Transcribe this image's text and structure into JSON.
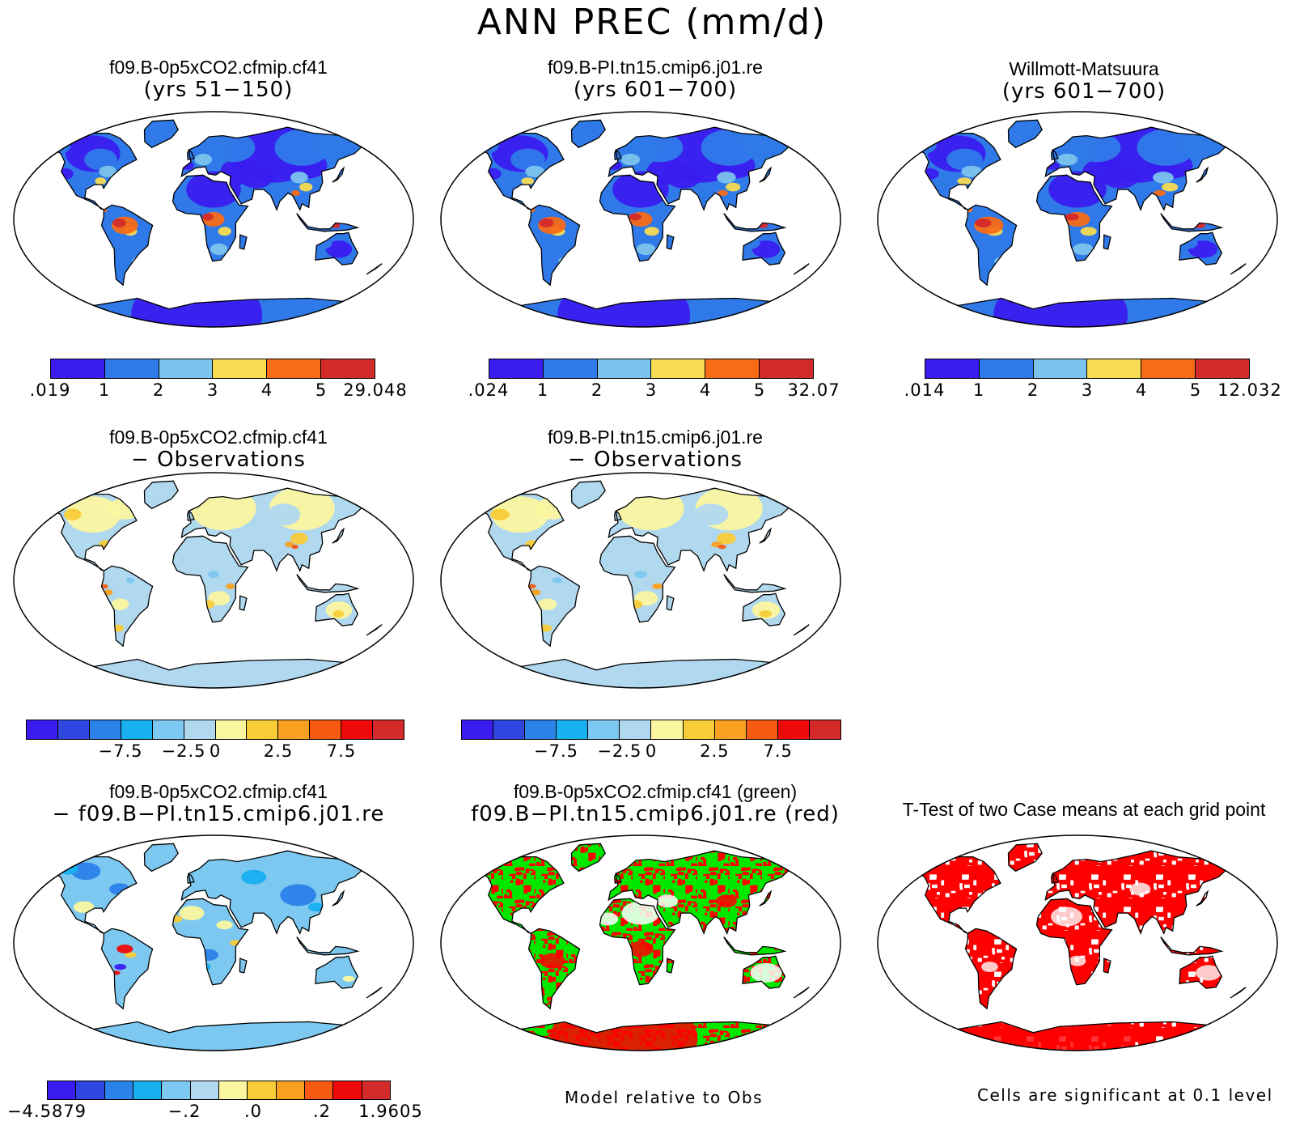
{
  "title": "ANN PREC (mm/d)",
  "palettes": {
    "abs": [
      "#3a1cf0",
      "#2f7ae8",
      "#7cc3ee",
      "#f8dc52",
      "#f86c18",
      "#d42a2a"
    ],
    "diff": [
      "#3a1cf0",
      "#3046e0",
      "#2b82e8",
      "#18b0f0",
      "#7cc8f0",
      "#b0d8ee",
      "#fbf7a0",
      "#f8cc38",
      "#f8a020",
      "#f85a12",
      "#ee0a0a",
      "#d42a2a"
    ],
    "rel": [
      "#3a1cf0",
      "#3046e0",
      "#2b82e8",
      "#18b0f0",
      "#7cc8f0",
      "#b0d8ee",
      "#fbf7a0",
      "#f8cc38",
      "#f8a020",
      "#f85a12",
      "#ee0a0a",
      "#d42a2a"
    ],
    "green": "#00e800",
    "red": "#ff0000",
    "ocean": "#ffffff",
    "coast": "#000000"
  },
  "panels": [
    {
      "id": "p1",
      "title1": "f09.B-0p5xCO2.cfmip.cf41",
      "title2": "(yrs 51−150)",
      "fill": "abs",
      "colorbar": ".019 | 1 | 2 | 3 | 4 | 5 | 29.048"
    },
    {
      "id": "p2",
      "title1": "f09.B-PI.tn15.cmip6.j01.re",
      "title2": "(yrs 601−700)",
      "fill": "abs",
      "colorbar": ".024 | 1 | 2 | 3 | 4 | 5 | 32.07"
    },
    {
      "id": "p3",
      "title1": "Willmott-Matsuura",
      "title2": "(yrs 601−700)",
      "fill": "abs",
      "colorbar": ".014 | 1 | 2 | 3 | 4 | 5 | 12.032"
    },
    {
      "id": "p4",
      "title1": "f09.B-0p5xCO2.cfmip.cf41",
      "title2": "− Observations",
      "fill": "diff",
      "colorbar": "−7.5 | −2.5 | 0 | 2.5 | 7.5"
    },
    {
      "id": "p5",
      "title1": "f09.B-PI.tn15.cmip6.j01.re",
      "title2": "− Observations",
      "fill": "diff",
      "colorbar": "−7.5 | −2.5 | 0 | 2.5 | 7.5"
    },
    {
      "id": "p6",
      "title1": "f09.B-0p5xCO2.cfmip.cf41",
      "title2": "− f09.B−PI.tn15.cmip6.j01.re",
      "fill": "rel",
      "colorbar": "−4.5879 | −.2 | .0 | .2 | 1.9605"
    },
    {
      "id": "p7",
      "title1": "f09.B-0p5xCO2.cfmip.cf41 (green)",
      "title2": "f09.B−PI.tn15.cmip6.j01.re (red)",
      "fill": "gr"
    },
    {
      "id": "p8",
      "title1": "T-Test of two Case means at each grid point",
      "title2": "",
      "fill": "tt"
    }
  ],
  "notes": {
    "model_rel": "Model relative to Obs",
    "signif": "Cells are significant at 0.1 level"
  }
}
